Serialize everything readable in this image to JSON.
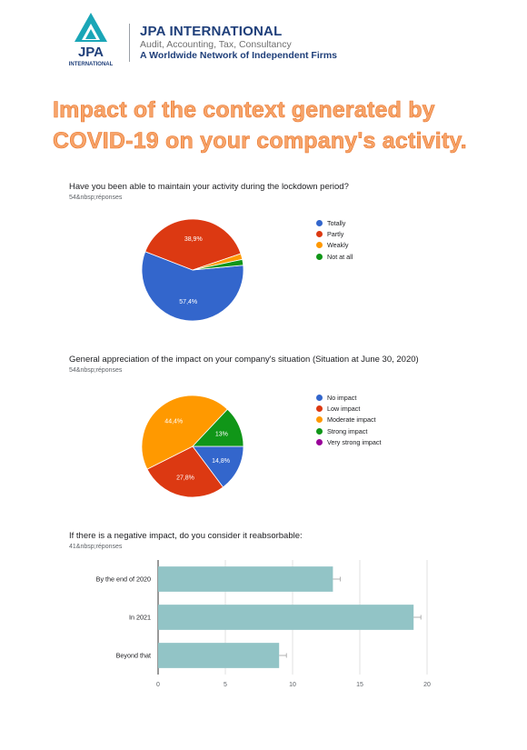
{
  "header": {
    "logo_text": "JPA",
    "logo_sub": "INTERNATIONAL",
    "company_name": "JPA INTERNATIONAL",
    "company_services": "Audit, Accounting, Tax, Consultancy",
    "company_network": "A Worldwide Network of Independent Firms"
  },
  "page": {
    "title": "Impact of the context generated by COVID-19 on your company's activity."
  },
  "questions": [
    {
      "title": "Have you been able to maintain your activity during the lockdown period?",
      "count": "54&nbsp;réponses"
    },
    {
      "title": "General appreciation of the impact on your company's situation (Situation at June 30, 2020)",
      "count": "54&nbsp;réponses"
    },
    {
      "title": "If there is a negative impact, do you consider it reabsorbable:",
      "count": "41&nbsp;réponses"
    }
  ],
  "colors": {
    "blue": "#3366cc",
    "red": "#dc3912",
    "orange": "#ff9900",
    "green": "#109618",
    "purple": "#990099",
    "teal": "#92c4c6",
    "title_orange": "#f7a46a",
    "brand_navy": "#1f3f7a",
    "brand_teal": "#1aa6b7"
  },
  "chart_data": [
    {
      "type": "pie",
      "labels": [
        "Totally",
        "Partly",
        "Weakly",
        "Not at all"
      ],
      "values": [
        57.4,
        38.9,
        1.85,
        1.85
      ],
      "value_labels": [
        "57,4%",
        "38,9%",
        "",
        ""
      ],
      "colors": [
        "#3366cc",
        "#dc3912",
        "#ff9900",
        "#109618"
      ],
      "legend": "right"
    },
    {
      "type": "pie",
      "labels": [
        "No impact",
        "Low impact",
        "Moderate impact",
        "Strong impact",
        "Very strong impact"
      ],
      "values": [
        14.8,
        27.8,
        44.4,
        13,
        0
      ],
      "value_labels": [
        "14,8%",
        "27,8%",
        "44,4%",
        "13%",
        ""
      ],
      "colors": [
        "#3366cc",
        "#dc3912",
        "#ff9900",
        "#109618",
        "#990099"
      ],
      "legend": "right"
    },
    {
      "type": "bar",
      "orientation": "horizontal",
      "categories": [
        "By the end of 2020",
        "In 2021",
        "Beyond that"
      ],
      "values": [
        13,
        19,
        9
      ],
      "xlim": [
        0,
        20
      ],
      "xticks": [
        "0",
        "5",
        "10",
        "15",
        "20"
      ],
      "grid": true,
      "color": "#92c4c6"
    }
  ]
}
